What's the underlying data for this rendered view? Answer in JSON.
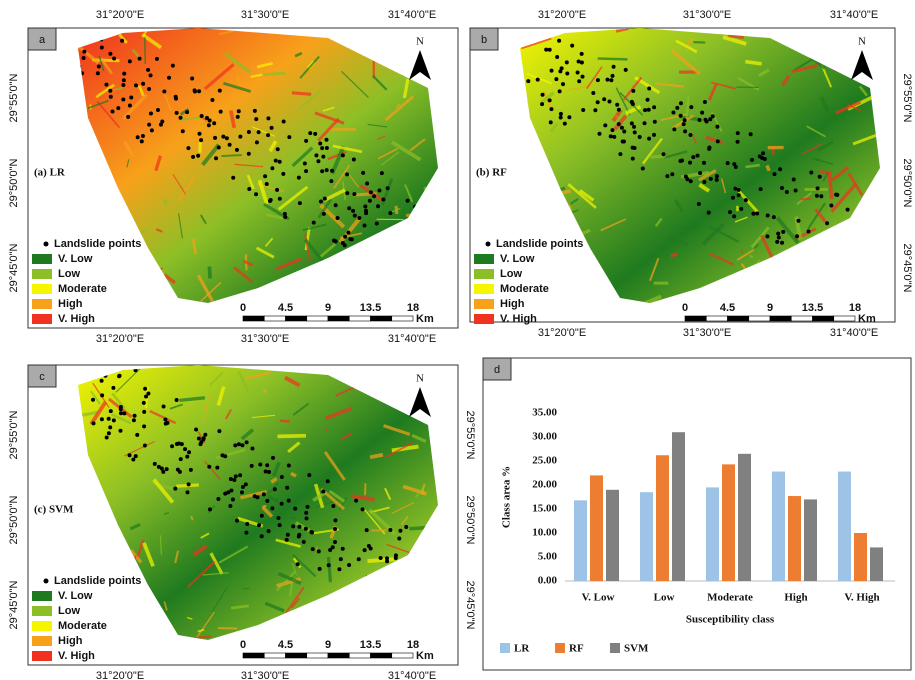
{
  "maps": [
    {
      "label": "a",
      "title": "(a) LR",
      "top_ticks": [
        "31°20'0\"E",
        "31°30'0\"E",
        "31°40'0\"E"
      ],
      "left_ticks": [
        "29°55'0\"N",
        "29°50'0\"N",
        "29°45'0\"N"
      ],
      "bottom_ticks": [
        "31°20'0\"E",
        "31°30'0\"E",
        "31°40'0\"E"
      ],
      "points_label": "Landslide points",
      "north": "N",
      "scale": [
        "0",
        "4.5",
        "9",
        "13.5",
        "18",
        "Km"
      ]
    },
    {
      "label": "b",
      "title": "(b) RF",
      "top_ticks": [
        "31°20'0\"E",
        "31°30'0\"E",
        "31°40'0\"E"
      ],
      "right_ticks": [
        "29°55'0\"N",
        "29°50'0\"N",
        "29°45'0\"N"
      ],
      "bottom_ticks": [
        "31°20'0\"E",
        "31°30'0\"E",
        "31°40'0\"E"
      ],
      "points_label": "Landslide points",
      "north": "N",
      "scale": [
        "0",
        "4.5",
        "9",
        "13.5",
        "18",
        "Km"
      ]
    },
    {
      "label": "c",
      "title": "(c) SVM",
      "left_ticks": [
        "29°55'0\"N",
        "29°50'0\"N",
        "29°45'0\"N"
      ],
      "right_ticks": [
        "29°55'0\"N",
        "29°50'0\"N",
        "29°45'0\"N"
      ],
      "bottom_ticks": [
        "31°20'0\"E",
        "31°30'0\"E",
        "31°40'0\"E"
      ],
      "points_label": "Landslide points",
      "north": "N",
      "scale": [
        "0",
        "4.5",
        "9",
        "13.5",
        "18",
        "Km"
      ]
    }
  ],
  "classes": [
    "V. Low",
    "Low",
    "Moderate",
    "High",
    "V. High"
  ],
  "class_colors": [
    "#1f7a1f",
    "#8cbf26",
    "#f5f500",
    "#f7a11a",
    "#f0321e"
  ],
  "chart_data": {
    "type": "bar",
    "label": "d",
    "xlabel": "Susceptibility class",
    "ylabel": "Class area %",
    "categories": [
      "V. Low",
      "Low",
      "Moderate",
      "High",
      "V. High"
    ],
    "series": [
      {
        "name": "LR",
        "color": "#9dc3e6",
        "values": [
          16.8,
          18.5,
          19.5,
          22.8,
          22.8
        ]
      },
      {
        "name": "RF",
        "color": "#ed7d31",
        "values": [
          22,
          26.2,
          24.3,
          17.7,
          10
        ]
      },
      {
        "name": "SVM",
        "color": "#808080",
        "values": [
          19,
          31,
          26.5,
          17,
          7
        ]
      }
    ],
    "ylim": [
      0,
      35
    ],
    "yticks": [
      {
        "value": 0,
        "label": "0.00"
      },
      {
        "value": 5,
        "label": "5.00"
      },
      {
        "value": 10,
        "label": "10.00"
      },
      {
        "value": 15,
        "label": "15.00"
      },
      {
        "value": 20,
        "label": "20.00"
      },
      {
        "value": 25,
        "label": "25.00"
      },
      {
        "value": 30,
        "label": "30.00"
      },
      {
        "value": 35,
        "label": "35.00"
      }
    ],
    "grid": false
  }
}
